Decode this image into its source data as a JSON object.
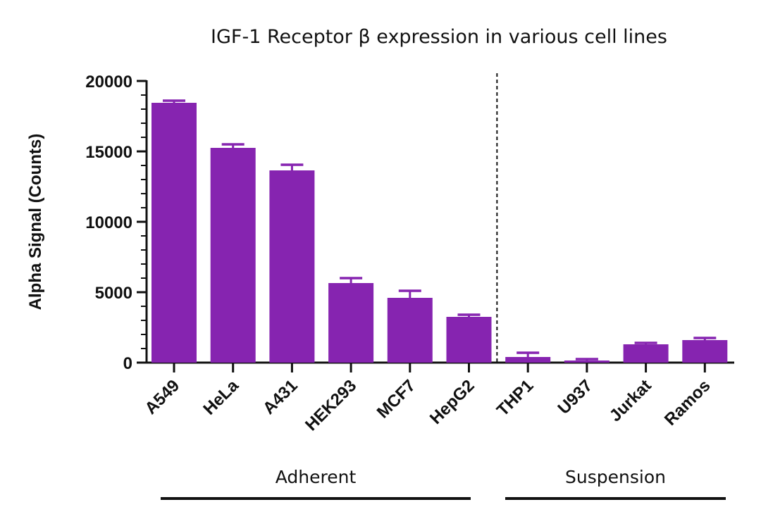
{
  "chart_data": {
    "type": "bar",
    "title": "IGF-1 Receptor β expression in various cell lines",
    "ylabel": "Alpha Signal (Counts)",
    "xlabel": "",
    "ylim": [
      0,
      20000
    ],
    "yticks": [
      0,
      5000,
      10000,
      15000,
      20000
    ],
    "grid": false,
    "categories": [
      "A549",
      "HeLa",
      "A431",
      "HEK293",
      "MCF7",
      "HepG2",
      "THP1",
      "U937",
      "Jurkat",
      "Ramos"
    ],
    "values": [
      18450,
      15250,
      13650,
      5650,
      4600,
      3250,
      400,
      150,
      1300,
      1600
    ],
    "errors": [
      150,
      250,
      400,
      350,
      500,
      150,
      300,
      100,
      100,
      150
    ],
    "groups": [
      {
        "label": "Adherent",
        "categories": [
          "A549",
          "HeLa",
          "A431",
          "HEK293",
          "MCF7",
          "HepG2"
        ]
      },
      {
        "label": "Suspension",
        "categories": [
          "THP1",
          "U937",
          "Jurkat",
          "Ramos"
        ]
      }
    ],
    "separator_after": "HepG2",
    "bar_color": "#8624b0"
  }
}
